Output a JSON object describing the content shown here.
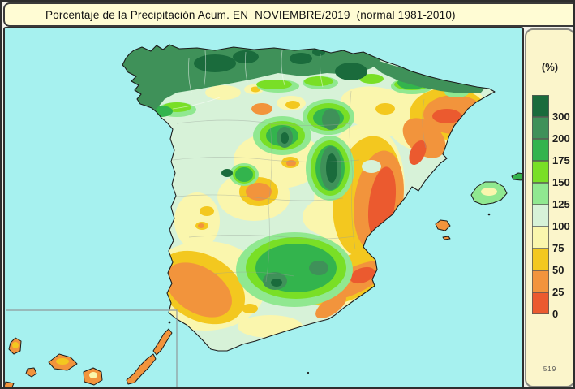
{
  "title": "Porcentaje de la Precipitación Acum. EN  NOVIEMBRE/2019  (normal 1981-2010)",
  "legend": {
    "unit_label": "(%)",
    "entries": [
      {
        "color": "#1a6b3c",
        "label": "300"
      },
      {
        "color": "#3f9159",
        "label": "200"
      },
      {
        "color": "#33b44d",
        "label": "175"
      },
      {
        "color": "#79df26",
        "label": "150"
      },
      {
        "color": "#90e890",
        "label": "125"
      },
      {
        "color": "#d7f2d8",
        "label": "100"
      },
      {
        "color": "#faf6ad",
        "label": "75"
      },
      {
        "color": "#f3c81f",
        "label": "50"
      },
      {
        "color": "#f2943c",
        "label": "25"
      },
      {
        "color": "#eb5a2f",
        "label": "0"
      }
    ],
    "footnote": "519"
  },
  "map": {
    "sea_color": "#a6f1ef",
    "title_bar_color": "#fffcd4",
    "legend_bg_color": "#fbf5cb"
  }
}
